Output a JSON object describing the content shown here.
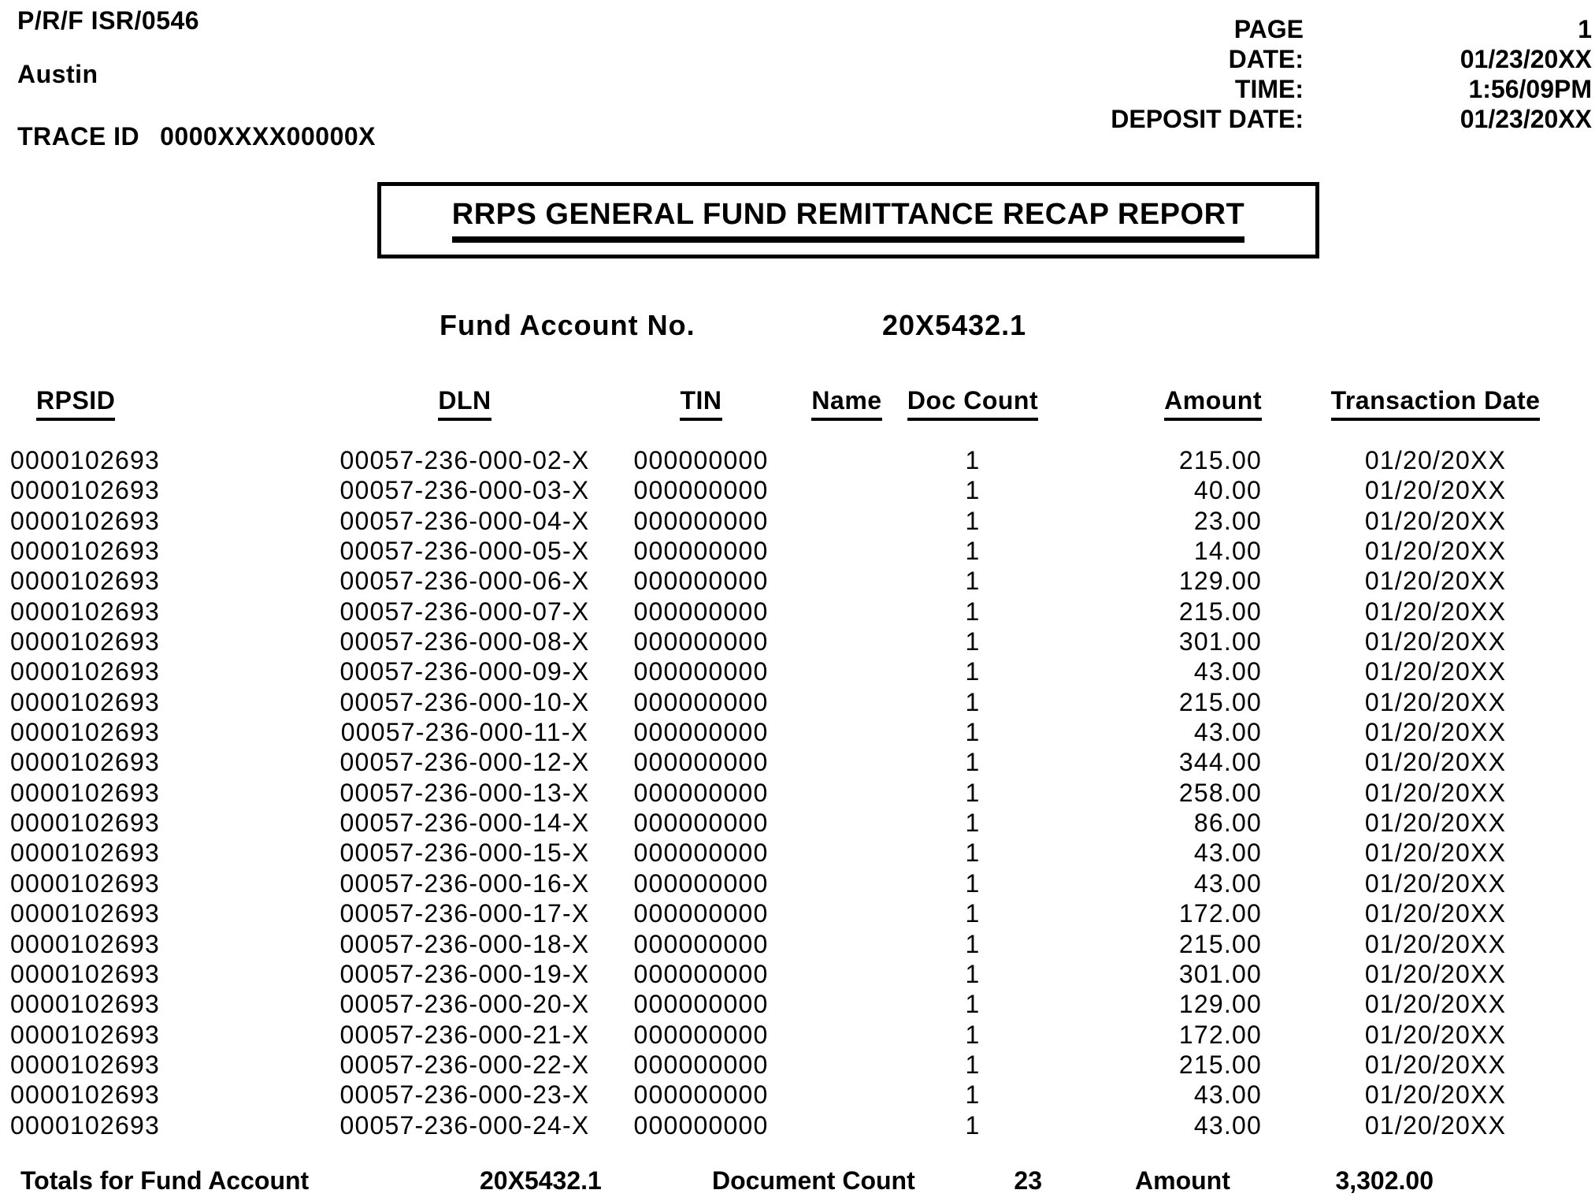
{
  "header": {
    "report_code": "P/R/F ISR/0546",
    "site": "Austin",
    "trace_id_label": "TRACE ID",
    "trace_id_value": "0000XXXX00000X",
    "meta": [
      {
        "label": "PAGE",
        "value": "1"
      },
      {
        "label": "DATE:",
        "value": "01/23/20XX"
      },
      {
        "label": "TIME:",
        "value": "1:56/09PM"
      },
      {
        "label": "DEPOSIT DATE:",
        "value": "01/23/20XX"
      }
    ]
  },
  "title": "RRPS GENERAL FUND REMITTANCE RECAP REPORT",
  "fund_account": {
    "label": "Fund Account No.",
    "value": "20X5432.1"
  },
  "table": {
    "columns": [
      "RPSID",
      "DLN",
      "TIN",
      "Name",
      "Doc Count",
      "Amount",
      "Transaction Date"
    ],
    "rows": [
      [
        "0000102693",
        "00057-236-000-02-X",
        "000000000",
        "",
        "1",
        "215.00",
        "01/20/20XX"
      ],
      [
        "0000102693",
        "00057-236-000-03-X",
        "000000000",
        "",
        "1",
        "40.00",
        "01/20/20XX"
      ],
      [
        "0000102693",
        "00057-236-000-04-X",
        "000000000",
        "",
        "1",
        "23.00",
        "01/20/20XX"
      ],
      [
        "0000102693",
        "00057-236-000-05-X",
        "000000000",
        "",
        "1",
        "14.00",
        "01/20/20XX"
      ],
      [
        "0000102693",
        "00057-236-000-06-X",
        "000000000",
        "",
        "1",
        "129.00",
        "01/20/20XX"
      ],
      [
        "0000102693",
        "00057-236-000-07-X",
        "000000000",
        "",
        "1",
        "215.00",
        "01/20/20XX"
      ],
      [
        "0000102693",
        "00057-236-000-08-X",
        "000000000",
        "",
        "1",
        "301.00",
        "01/20/20XX"
      ],
      [
        "0000102693",
        "00057-236-000-09-X",
        "000000000",
        "",
        "1",
        "43.00",
        "01/20/20XX"
      ],
      [
        "0000102693",
        "00057-236-000-10-X",
        "000000000",
        "",
        "1",
        "215.00",
        "01/20/20XX"
      ],
      [
        "0000102693",
        "00057-236-000-11-X",
        "000000000",
        "",
        "1",
        "43.00",
        "01/20/20XX"
      ],
      [
        "0000102693",
        "00057-236-000-12-X",
        "000000000",
        "",
        "1",
        "344.00",
        "01/20/20XX"
      ],
      [
        "0000102693",
        "00057-236-000-13-X",
        "000000000",
        "",
        "1",
        "258.00",
        "01/20/20XX"
      ],
      [
        "0000102693",
        "00057-236-000-14-X",
        "000000000",
        "",
        "1",
        "86.00",
        "01/20/20XX"
      ],
      [
        "0000102693",
        "00057-236-000-15-X",
        "000000000",
        "",
        "1",
        "43.00",
        "01/20/20XX"
      ],
      [
        "0000102693",
        "00057-236-000-16-X",
        "000000000",
        "",
        "1",
        "43.00",
        "01/20/20XX"
      ],
      [
        "0000102693",
        "00057-236-000-17-X",
        "000000000",
        "",
        "1",
        "172.00",
        "01/20/20XX"
      ],
      [
        "0000102693",
        "00057-236-000-18-X",
        "000000000",
        "",
        "1",
        "215.00",
        "01/20/20XX"
      ],
      [
        "0000102693",
        "00057-236-000-19-X",
        "000000000",
        "",
        "1",
        "301.00",
        "01/20/20XX"
      ],
      [
        "0000102693",
        "00057-236-000-20-X",
        "000000000",
        "",
        "1",
        "129.00",
        "01/20/20XX"
      ],
      [
        "0000102693",
        "00057-236-000-21-X",
        "000000000",
        "",
        "1",
        "172.00",
        "01/20/20XX"
      ],
      [
        "0000102693",
        "00057-236-000-22-X",
        "000000000",
        "",
        "1",
        "215.00",
        "01/20/20XX"
      ],
      [
        "0000102693",
        "00057-236-000-23-X",
        "000000000",
        "",
        "1",
        "43.00",
        "01/20/20XX"
      ],
      [
        "0000102693",
        "00057-236-000-24-X",
        "000000000",
        "",
        "1",
        "43.00",
        "01/20/20XX"
      ]
    ]
  },
  "totals": {
    "label": "Totals for Fund Account",
    "fund_account": "20X5432.1",
    "doc_count_label": "Document Count",
    "doc_count": "23",
    "amount_label": "Amount",
    "amount": "3,302.00"
  }
}
